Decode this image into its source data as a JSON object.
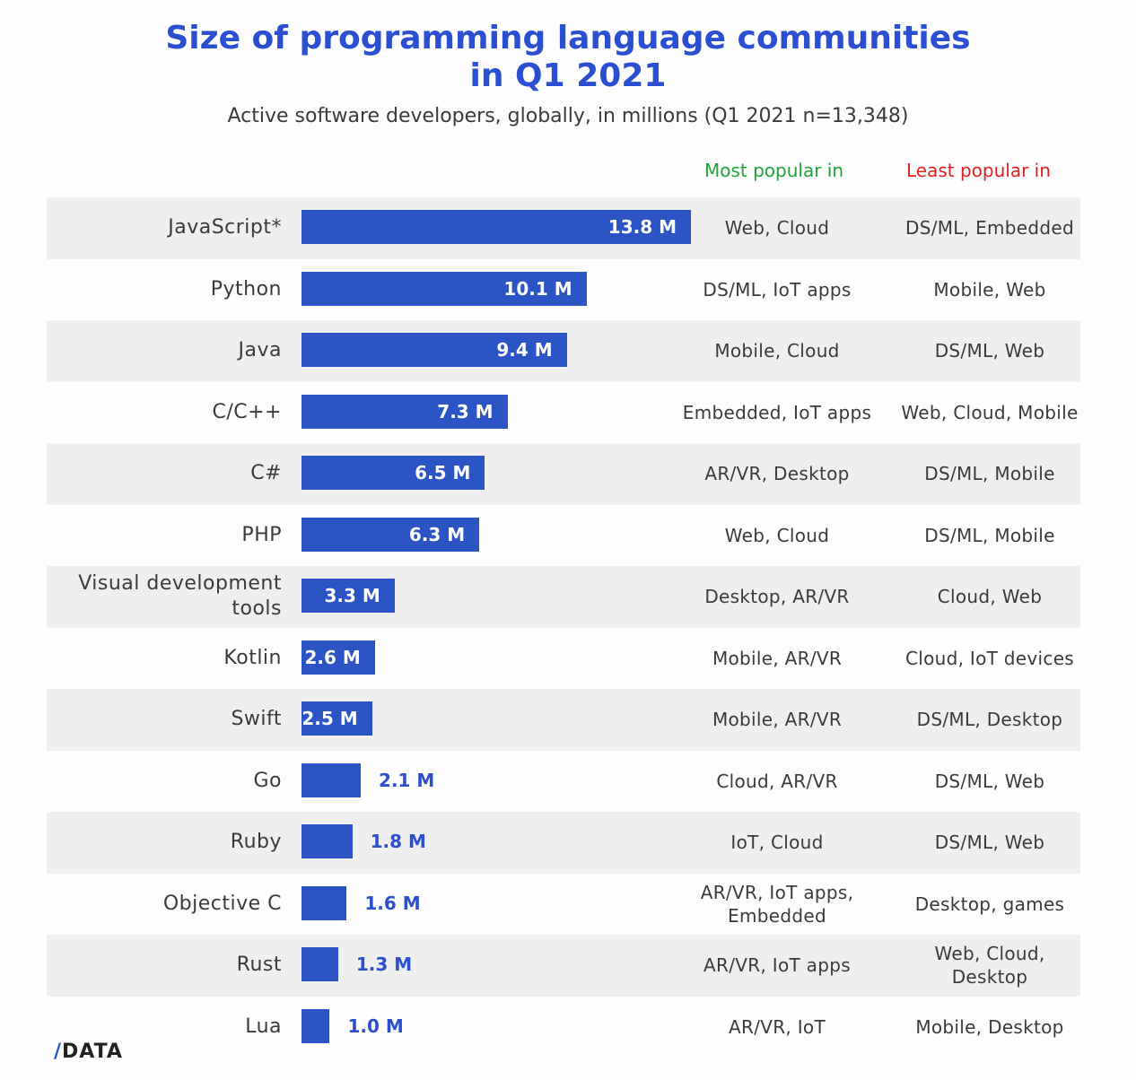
{
  "chart_data": {
    "type": "bar",
    "orientation": "horizontal",
    "title": "Size of programming language communities in Q1 2021",
    "subtitle": "Active software developers, globally, in millions (Q1 2021 n=13,348)",
    "columns": {
      "most": "Most popular in",
      "least": "Least popular in"
    },
    "colors": {
      "bar": "#2b55c4",
      "most_header": "#1fa33a",
      "least_header": "#e0201c",
      "title": "#2a4fd1"
    },
    "categories": [
      "JavaScript*",
      "Python",
      "Java",
      "C/C++",
      "C#",
      "PHP",
      "Visual development tools",
      "Kotlin",
      "Swift",
      "Go",
      "Ruby",
      "Objective C",
      "Rust",
      "Lua"
    ],
    "values": [
      13.8,
      10.1,
      9.4,
      7.3,
      6.5,
      6.3,
      3.3,
      2.6,
      2.5,
      2.1,
      1.8,
      1.6,
      1.3,
      1.0
    ],
    "labels": [
      "13.8 M",
      "10.1 M",
      "9.4 M",
      "7.3 M",
      "6.5 M",
      "6.3 M",
      "3.3 M",
      "2.6 M",
      "2.5 M",
      "2.1 M",
      "1.8 M",
      "1.6 M",
      "1.3 M",
      "1.0 M"
    ],
    "most_popular": [
      "Web, Cloud",
      "DS/ML, IoT apps",
      "Mobile, Cloud",
      "Embedded, IoT apps",
      "AR/VR, Desktop",
      "Web, Cloud",
      "Desktop, AR/VR",
      "Mobile, AR/VR",
      "Mobile, AR/VR",
      "Cloud, AR/VR",
      "IoT, Cloud",
      "AR/VR, IoT apps, Embedded",
      "AR/VR, IoT apps",
      "AR/VR, IoT"
    ],
    "least_popular": [
      "DS/ML, Embedded",
      "Mobile, Web",
      "DS/ML, Web",
      "Web, Cloud, Mobile",
      "DS/ML, Mobile",
      "DS/ML, Mobile",
      "Cloud, Web",
      "Cloud, IoT devices",
      "DS/ML, Desktop",
      "DS/ML, Web",
      "DS/ML, Web",
      "Desktop, games",
      "Web, Cloud, Desktop",
      "Mobile, Desktop"
    ],
    "xlim": [
      0,
      13.8
    ]
  },
  "logo": {
    "slash": "/",
    "text": "DATA"
  }
}
